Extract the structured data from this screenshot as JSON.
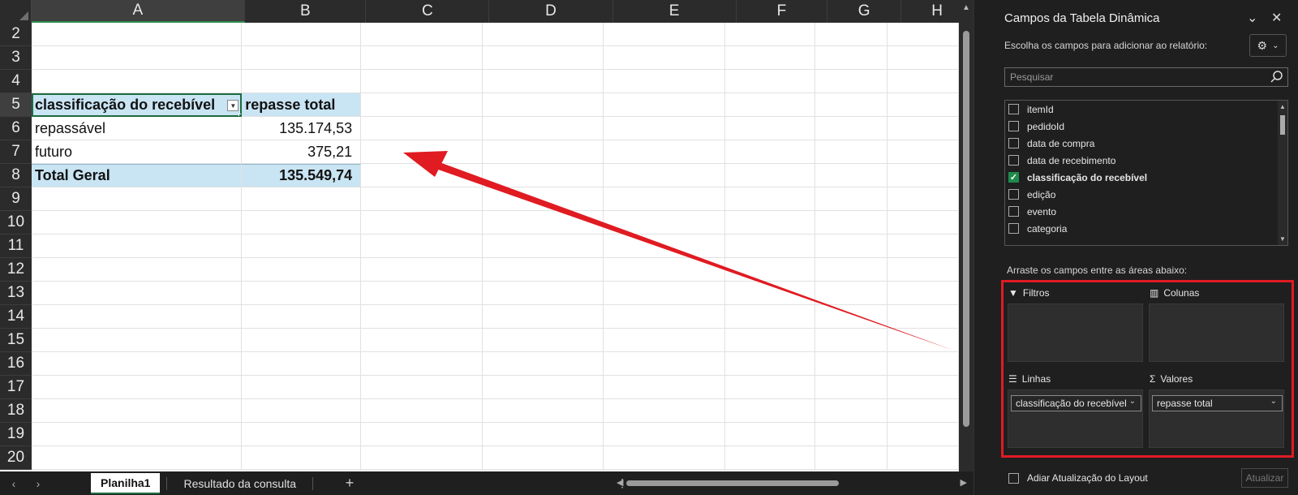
{
  "spreadsheet": {
    "columns": [
      "A",
      "B",
      "C",
      "D",
      "E",
      "F",
      "G",
      "H"
    ],
    "rows": [
      "2",
      "3",
      "4",
      "5",
      "6",
      "7",
      "8",
      "9",
      "10",
      "11",
      "12",
      "13",
      "14",
      "15",
      "16",
      "17",
      "18",
      "19",
      "20"
    ],
    "pivot": {
      "header_row_label": "classificação do recebível",
      "header_value_label": "repasse total",
      "rows": [
        {
          "label": "repassável",
          "value": "135.174,53"
        },
        {
          "label": "futuro",
          "value": "375,21"
        }
      ],
      "total_label": "Total Geral",
      "total_value": "135.549,74"
    }
  },
  "sheet_tabs": {
    "tabs": [
      "Planilha1",
      "Resultado da consulta"
    ],
    "active": "Planilha1",
    "add_icon": "plus-icon"
  },
  "pivot_panel": {
    "title": "Campos da Tabela Dinâmica",
    "subtitle": "Escolha os campos para adicionar ao relatório:",
    "search_placeholder": "Pesquisar",
    "fields": [
      {
        "name": "itemId",
        "checked": false
      },
      {
        "name": "pedidoId",
        "checked": false
      },
      {
        "name": "data de compra",
        "checked": false
      },
      {
        "name": "data de recebimento",
        "checked": false
      },
      {
        "name": "classificação do recebível",
        "checked": true
      },
      {
        "name": "edição",
        "checked": false
      },
      {
        "name": "evento",
        "checked": false
      },
      {
        "name": "categoria",
        "checked": false
      }
    ],
    "drag_label": "Arraste os campos entre as áreas abaixo:",
    "areas": {
      "filters": {
        "label": "Filtros"
      },
      "columns": {
        "label": "Colunas"
      },
      "rows": {
        "label": "Linhas",
        "item": "classificação do recebível"
      },
      "values": {
        "label": "Valores",
        "item": "repasse total"
      }
    },
    "defer_label": "Adiar Atualização do Layout",
    "update_label": "Atualizar"
  },
  "colors": {
    "pivot_header": "#c9e4f3",
    "highlight_border": "#e01b22",
    "selection": "#1d6b3f"
  }
}
